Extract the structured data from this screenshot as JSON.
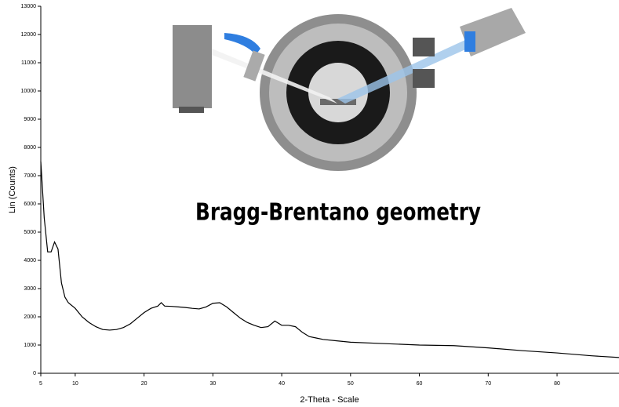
{
  "chart_data": {
    "type": "line",
    "annotation": "Bragg-Brentano geometry",
    "x_label": "2-Theta - Scale",
    "y_label": "Lin (Counts)",
    "xlim": [
      5,
      89
    ],
    "ylim": [
      0,
      13000
    ],
    "xticks": [
      5,
      10,
      20,
      30,
      40,
      50,
      60,
      70,
      80
    ],
    "yticks": [
      0,
      1000,
      2000,
      3000,
      4000,
      5000,
      6000,
      7000,
      8000,
      9000,
      10000,
      11000,
      12000,
      13000
    ],
    "series": [
      {
        "color": "#000000",
        "x": [
          5,
          5.5,
          6,
          6.5,
          7,
          7.5,
          8,
          8.5,
          9,
          10,
          11,
          12,
          13,
          14,
          15,
          16,
          17,
          18,
          19,
          20,
          21,
          22,
          22.5,
          23,
          24,
          25,
          26,
          27,
          28,
          29,
          30,
          31,
          32,
          33,
          34,
          35,
          36,
          37,
          38,
          39,
          40,
          41,
          42,
          43,
          44,
          45,
          46,
          48,
          50,
          55,
          60,
          65,
          70,
          75,
          80,
          85,
          89
        ],
        "values": [
          7500,
          5500,
          4300,
          4300,
          4650,
          4400,
          3200,
          2700,
          2500,
          2300,
          2000,
          1800,
          1650,
          1550,
          1530,
          1550,
          1620,
          1750,
          1950,
          2150,
          2300,
          2380,
          2500,
          2380,
          2370,
          2350,
          2330,
          2300,
          2280,
          2350,
          2480,
          2500,
          2350,
          2150,
          1950,
          1800,
          1700,
          1620,
          1650,
          1850,
          1700,
          1700,
          1650,
          1450,
          1300,
          1250,
          1200,
          1150,
          1100,
          1050,
          1000,
          980,
          900,
          800,
          720,
          620,
          560
        ]
      }
    ]
  }
}
